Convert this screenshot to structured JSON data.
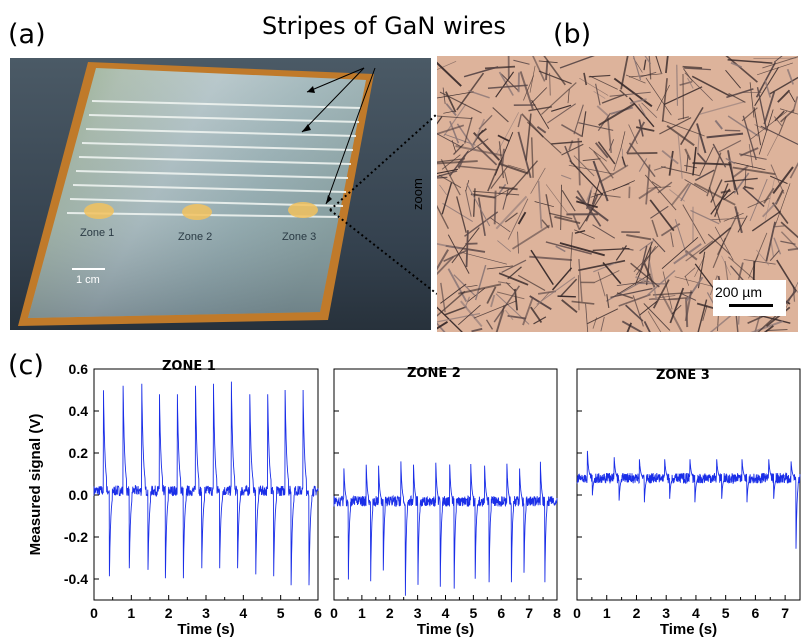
{
  "figure": {
    "panel_a_label": "(a)",
    "panel_b_label": "(b)",
    "panel_c_label": "(c)",
    "callout": "Stripes of GaN wires",
    "zoom_label": "zoom",
    "photo_a": {
      "zones": [
        "Zone 1",
        "Zone 2",
        "Zone 3"
      ],
      "scale_bar": "1 cm"
    },
    "photo_b": {
      "scale_bar": "200 µm"
    }
  },
  "chart_data": [
    {
      "type": "line",
      "title": "ZONE 1",
      "xlabel": "Time (s)",
      "ylabel": "Measured signal (V)",
      "xlim": [
        0,
        6
      ],
      "ylim": [
        -0.5,
        0.6
      ],
      "xticks": [
        "0",
        "1",
        "2",
        "3",
        "4",
        "5",
        "6"
      ],
      "yticks": [
        "-0.4",
        "-0.2",
        "0.0",
        "0.2",
        "0.4",
        "0.6"
      ],
      "baseline": 0.02,
      "pulse_times": [
        0.25,
        0.78,
        1.28,
        1.75,
        2.23,
        2.72,
        3.2,
        3.68,
        4.17,
        4.65,
        5.12,
        5.6
      ],
      "peak_values": [
        0.54,
        0.52,
        0.53,
        0.52,
        0.52,
        0.52,
        0.53,
        0.54,
        0.52,
        0.52,
        0.5,
        0.5
      ],
      "trough_values": [
        -0.43,
        -0.43,
        -0.44,
        -0.44,
        -0.44,
        -0.43,
        -0.43,
        -0.43,
        -0.42,
        -0.43,
        -0.43,
        -0.43
      ],
      "color": "#1a2ee8"
    },
    {
      "type": "line",
      "title": "ZONE 2",
      "xlabel": "Time (s)",
      "xlim": [
        0,
        8
      ],
      "ylim": [
        -0.5,
        0.6
      ],
      "xticks": [
        "0",
        "1",
        "2",
        "3",
        "4",
        "5",
        "6",
        "7",
        "8"
      ],
      "baseline": -0.03,
      "pulse_times": [
        0.35,
        1.15,
        1.6,
        2.4,
        2.85,
        3.65,
        4.15,
        4.9,
        5.4,
        6.2,
        6.65,
        7.4
      ],
      "peak_values": [
        0.15,
        0.17,
        0.14,
        0.16,
        0.16,
        0.17,
        0.15,
        0.18,
        0.16,
        0.17,
        0.16,
        0.18
      ],
      "trough_values": [
        -0.47,
        -0.48,
        -0.46,
        -0.48,
        -0.47,
        -0.48,
        -0.46,
        -0.48,
        -0.47,
        -0.47,
        -0.46,
        -0.47
      ],
      "color": "#1a2ee8"
    },
    {
      "type": "line",
      "title": "ZONE 3",
      "xlabel": "Time (s)",
      "xlim": [
        0,
        7.5
      ],
      "ylim": [
        -0.5,
        0.6
      ],
      "xticks": [
        "0",
        "1",
        "2",
        "3",
        "4",
        "5",
        "6",
        "7"
      ],
      "baseline": 0.08,
      "pulse_times": [
        0.35,
        1.25,
        2.1,
        2.95,
        3.8,
        4.7,
        5.55,
        6.45,
        7.2
      ],
      "peak_values": [
        0.21,
        0.18,
        0.17,
        0.17,
        0.17,
        0.17,
        0.17,
        0.17,
        0.16
      ],
      "trough_values": [
        -0.02,
        -0.05,
        -0.06,
        -0.04,
        -0.06,
        -0.04,
        -0.06,
        -0.04,
        -0.33
      ],
      "color": "#1a2ee8"
    }
  ]
}
